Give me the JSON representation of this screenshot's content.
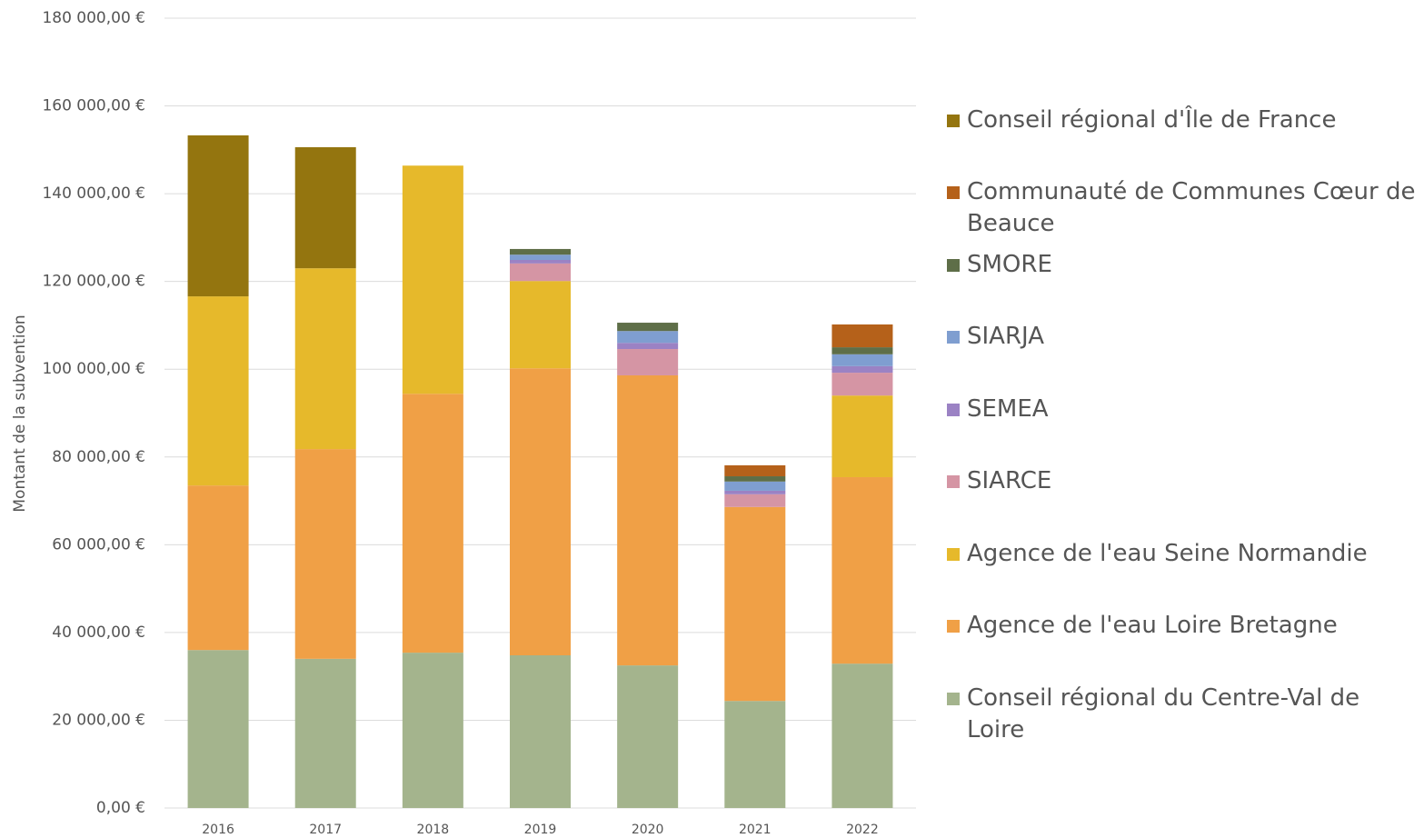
{
  "chart_data": {
    "type": "stacked_bar",
    "y_label": "Montant  de la subvention",
    "categories": [
      "2016",
      "2017",
      "2018",
      "2019",
      "2020",
      "2021",
      "2022"
    ],
    "ylim": [
      0,
      180000
    ],
    "yticks": [
      {
        "value": 0,
        "label": "0,00 €"
      },
      {
        "value": 20000,
        "label": "20 000,00 €"
      },
      {
        "value": 40000,
        "label": "40 000,00 €"
      },
      {
        "value": 60000,
        "label": "60 000,00 €"
      },
      {
        "value": 80000,
        "label": "80 000,00 €"
      },
      {
        "value": 100000,
        "label": "100 000,00 €"
      },
      {
        "value": 120000,
        "label": "120 000,00 €"
      },
      {
        "value": 140000,
        "label": "140 000,00 €"
      },
      {
        "value": 160000,
        "label": "160 000,00 €"
      },
      {
        "value": 180000,
        "label": "180 000,00 €"
      }
    ],
    "grid": true,
    "legend": "right",
    "series": [
      {
        "name": "Conseil régional du Centre-Val de Loire",
        "color": "#a4b48d",
        "values": [
          36000,
          34000,
          35400,
          34800,
          32500,
          24400,
          32900
        ]
      },
      {
        "name": "Agence de l'eau Loire Bretagne",
        "color": "#f0a046",
        "values": [
          37500,
          47800,
          59000,
          65400,
          66100,
          44200,
          42500
        ]
      },
      {
        "name": "Agence de l'eau Seine Normandie",
        "color": "#e6b92b",
        "values": [
          43100,
          41200,
          52000,
          19900,
          null,
          null,
          18600
        ]
      },
      {
        "name": "SIARCE",
        "color": "#d595a4",
        "values": [
          null,
          null,
          null,
          4000,
          6000,
          2900,
          5200
        ]
      },
      {
        "name": "SEMEA",
        "color": "#9b82c4",
        "values": [
          null,
          null,
          null,
          800,
          1400,
          800,
          1500
        ]
      },
      {
        "name": "SIARJA",
        "color": "#7f9ed0",
        "values": [
          null,
          null,
          null,
          1200,
          2700,
          2100,
          2700
        ]
      },
      {
        "name": "SMORE",
        "color": "#5e6e48",
        "values": [
          null,
          null,
          null,
          1300,
          1900,
          1200,
          1600
        ]
      },
      {
        "name": "Communauté de Communes Cœur de Beauce",
        "color": "#b5611a",
        "values": [
          null,
          null,
          null,
          null,
          null,
          2500,
          5200
        ]
      },
      {
        "name": "Conseil régional d'Île de France",
        "color": "#94750f",
        "values": [
          36700,
          27600,
          null,
          null,
          null,
          null,
          null
        ]
      }
    ]
  }
}
